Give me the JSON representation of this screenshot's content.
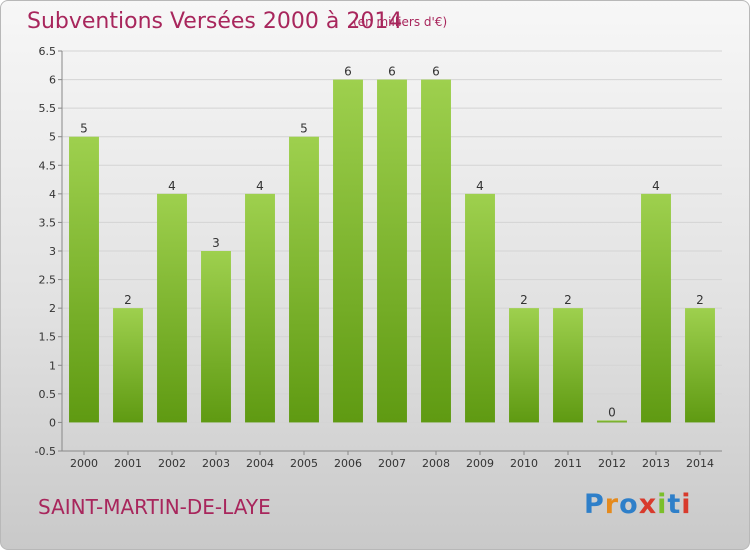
{
  "header": {
    "title": "Subventions Versées 2000 à 2014",
    "unit": "(en milliers d'€)"
  },
  "footer": {
    "commune": "SAINT-MARTIN-DE-LAYE",
    "logo_text": "Proxiti",
    "logo_colors": [
      "#2e7fc9",
      "#e58a1c",
      "#2e7fc9",
      "#d83a2c",
      "#7bbf2a",
      "#2e7fc9",
      "#d83a2c"
    ]
  },
  "chart_data": {
    "type": "bar",
    "categories": [
      "2000",
      "2001",
      "2002",
      "2003",
      "2004",
      "2005",
      "2006",
      "2007",
      "2008",
      "2009",
      "2010",
      "2011",
      "2012",
      "2013",
      "2014"
    ],
    "values": [
      5,
      2,
      4,
      3,
      4,
      5,
      6,
      6,
      6,
      4,
      2,
      2,
      0,
      4,
      2
    ],
    "data_labels": [
      "5",
      "2",
      "4",
      "3",
      "4",
      "5",
      "6",
      "6",
      "6",
      "4",
      "2",
      "2",
      "0",
      "4",
      "2"
    ],
    "yticks": [
      -0.5,
      0,
      0.5,
      1,
      1.5,
      2,
      2.5,
      3,
      3.5,
      4,
      4.5,
      5,
      5.5,
      6,
      6.5
    ],
    "ytick_labels": [
      "-0.5",
      "0",
      "0.5",
      "1",
      "1.5",
      "2",
      "2.5",
      "3",
      "3.5",
      "4",
      "4.5",
      "5",
      "5.5",
      "6",
      "6.5"
    ],
    "ylim": [
      -0.5,
      6.5
    ],
    "grid": true,
    "colors": {
      "bar_top": "#9ed04e",
      "bar_bottom": "#5f9a12",
      "grid": "#d4d4d4",
      "axis_text": "#333333"
    }
  }
}
